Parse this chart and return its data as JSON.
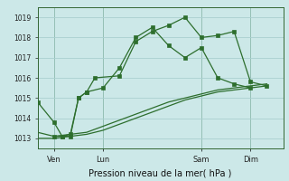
{
  "background_color": "#cce8e8",
  "grid_color": "#aad0d0",
  "line_color": "#2d6e2d",
  "marker_color": "#2d6e2d",
  "title": "Pression niveau de la mer( hPa )",
  "ylim": [
    1012.5,
    1019.5
  ],
  "yticks": [
    1013,
    1014,
    1015,
    1016,
    1017,
    1018,
    1019
  ],
  "xtick_labels": [
    "Ven",
    "Lun",
    "Sam",
    "Dim"
  ],
  "xtick_positions": [
    1,
    4,
    10,
    13
  ],
  "vlines": [
    1,
    4,
    10,
    13
  ],
  "xlim": [
    0,
    15
  ],
  "series1_x": [
    0,
    1,
    1.5,
    2,
    2.5,
    3,
    3.5,
    5,
    6,
    7,
    8,
    9,
    10,
    11,
    12,
    13,
    14
  ],
  "series1_y": [
    1014.8,
    1013.8,
    1013.1,
    1013.1,
    1015.0,
    1015.3,
    1016.0,
    1016.1,
    1017.8,
    1018.3,
    1018.6,
    1019.0,
    1018.0,
    1018.1,
    1018.3,
    1015.8,
    1015.6
  ],
  "series2_x": [
    1,
    1.5,
    2,
    2.5,
    3,
    4,
    5,
    6,
    7,
    8,
    9,
    10,
    11,
    12,
    13
  ],
  "series2_y": [
    1013.1,
    1013.1,
    1013.2,
    1015.0,
    1015.3,
    1015.5,
    1016.5,
    1018.0,
    1018.5,
    1017.6,
    1017.0,
    1017.5,
    1016.0,
    1015.7,
    1015.5
  ],
  "series3_x": [
    0,
    1,
    2,
    3,
    4,
    5,
    6,
    7,
    8,
    9,
    10,
    11,
    12,
    13,
    14
  ],
  "series3_y": [
    1013.3,
    1013.1,
    1013.2,
    1013.3,
    1013.6,
    1013.9,
    1014.2,
    1014.5,
    1014.8,
    1015.0,
    1015.2,
    1015.4,
    1015.5,
    1015.6,
    1015.7
  ],
  "series4_x": [
    0,
    1,
    2,
    3,
    4,
    5,
    6,
    7,
    8,
    9,
    10,
    11,
    12,
    13,
    14
  ],
  "series4_y": [
    1013.0,
    1013.0,
    1013.1,
    1013.2,
    1013.4,
    1013.7,
    1014.0,
    1014.3,
    1014.6,
    1014.9,
    1015.1,
    1015.3,
    1015.4,
    1015.5,
    1015.6
  ]
}
